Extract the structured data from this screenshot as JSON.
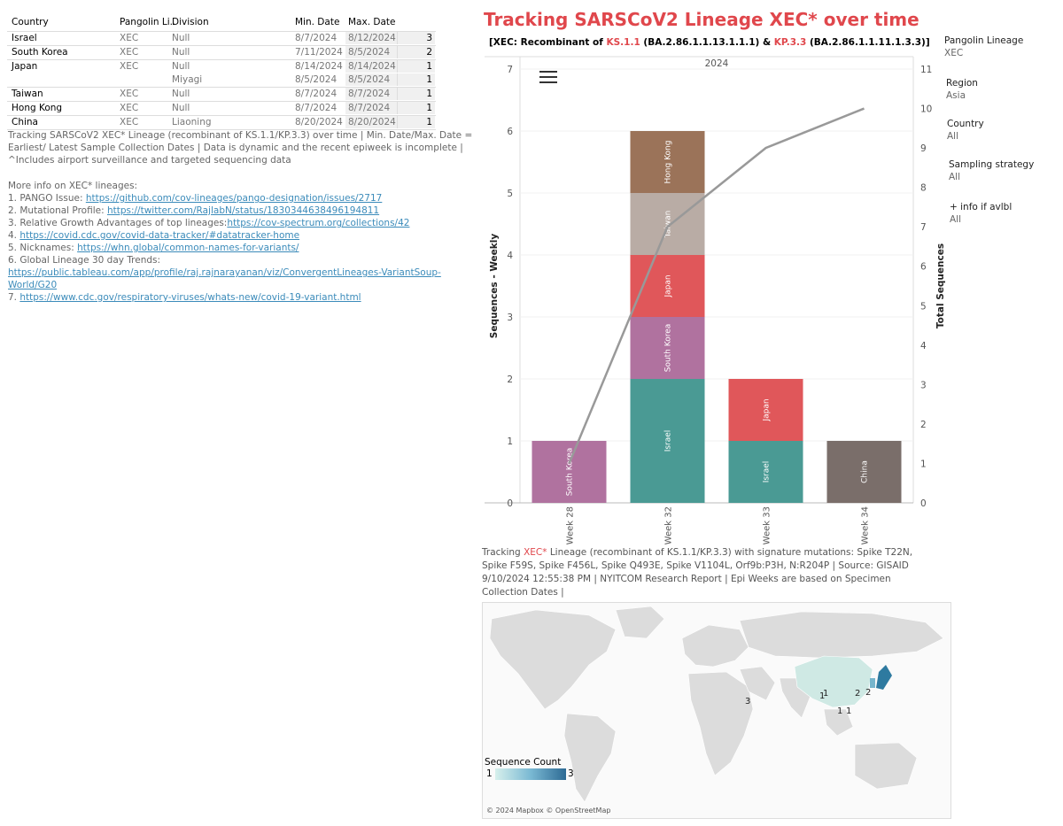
{
  "table": {
    "headers": {
      "country": "Country",
      "pango": "Pangolin Li..",
      "division": "Division",
      "min": "Min. Date",
      "max": "Max. Date"
    },
    "rows": [
      {
        "country": "Israel",
        "pango": "XEC",
        "division": "Null",
        "min": "8/7/2024",
        "max": "8/12/2024",
        "count": "3"
      },
      {
        "country": "South Korea",
        "pango": "XEC",
        "division": "Null",
        "min": "7/11/2024",
        "max": "8/5/2024",
        "count": "2"
      },
      {
        "country": "Japan",
        "pango": "XEC",
        "division": "Null",
        "min": "8/14/2024",
        "max": "8/14/2024",
        "count": "1"
      },
      {
        "country": "",
        "pango": "",
        "division": "Miyagi",
        "min": "8/5/2024",
        "max": "8/5/2024",
        "count": "1"
      },
      {
        "country": "Taiwan",
        "pango": "XEC",
        "division": "Null",
        "min": "8/7/2024",
        "max": "8/7/2024",
        "count": "1"
      },
      {
        "country": "Hong Kong",
        "pango": "XEC",
        "division": "Null",
        "min": "8/7/2024",
        "max": "8/7/2024",
        "count": "1"
      },
      {
        "country": "China",
        "pango": "XEC",
        "division": "Liaoning",
        "min": "8/20/2024",
        "max": "8/20/2024",
        "count": "1"
      }
    ]
  },
  "description": "Tracking SARSCoV2 XEC* Lineage (recombinant of KS.1.1/KP.3.3) over time | Min. Date/Max. Date = Earliest/ Latest Sample Collection Dates | Data is dynamic and the recent epiweek is incomplete | ^Includes airport surveillance and targeted sequencing data",
  "more_info": {
    "heading": "More info on XEC* lineages:",
    "items": [
      {
        "prefix": "1.  PANGO Issue: ",
        "link": "https://github.com/cov-lineages/pango-designation/issues/2717"
      },
      {
        "prefix": "2. Mutational Profile: ",
        "link": "https://twitter.com/RajlabN/status/1830344638496194811"
      },
      {
        "prefix": "3. Relative Growth Advantages of top lineages:",
        "link": "https://cov-spectrum.org/collections/42"
      },
      {
        "prefix": "4. ",
        "link": "https://covid.cdc.gov/covid-data-tracker/#datatracker-home"
      },
      {
        "prefix": "5. Nicknames: ",
        "link": "https://whn.global/common-names-for-variants/"
      },
      {
        "prefix": "6. Global Lineage 30 day Trends: ",
        "link": "https://public.tableau.com/app/profile/raj.rajnarayanan/viz/ConvergentLineages-VariantSoup-World/G20"
      },
      {
        "prefix": "7. ",
        "link": "https://www.cdc.gov/respiratory-viruses/whats-new/covid-19-variant.html"
      }
    ]
  },
  "chart": {
    "title": "Tracking SARSCoV2 Lineage XEC* over time",
    "subtitle_parts": {
      "p1": "[XEC: Recombinant of ",
      "p2": "KS.1.1",
      "p3": " (BA.2.86.1.1.13.1.1.1) & ",
      "p4": "KP.3.3",
      "p5": " (BA.2.86.1.1.11.1.3.3)]"
    },
    "header": "2024"
  },
  "chart_data": {
    "type": "bar",
    "stacked": true,
    "categories": [
      "Week 28",
      "Week 32",
      "Week 33",
      "Week 34"
    ],
    "ylabel": "Sequences - Weekly",
    "y2label": "Total  Sequences",
    "ylim": [
      0,
      7
    ],
    "y2lim": [
      0,
      11
    ],
    "yticks": [
      0,
      1,
      2,
      3,
      4,
      5,
      6,
      7
    ],
    "y2ticks": [
      0,
      1,
      2,
      3,
      4,
      5,
      6,
      7,
      8,
      9,
      10,
      11
    ],
    "series": [
      {
        "name": "Israel",
        "color": "#4a9a94",
        "values": [
          0,
          2,
          1,
          0
        ]
      },
      {
        "name": "South Korea",
        "color": "#b0729f",
        "values": [
          1,
          1,
          0,
          0
        ]
      },
      {
        "name": "Japan",
        "color": "#e0575a",
        "values": [
          0,
          1,
          1,
          0
        ]
      },
      {
        "name": "Taiwan",
        "color": "#b9aca5",
        "values": [
          0,
          1,
          0,
          0
        ]
      },
      {
        "name": "Hong Kong",
        "color": "#9b7359",
        "values": [
          0,
          1,
          0,
          0
        ]
      },
      {
        "name": "China",
        "color": "#7a6e6a",
        "values": [
          0,
          0,
          0,
          1
        ]
      }
    ],
    "total_line": {
      "name": "Total  Sequences",
      "color": "#999999",
      "values": [
        1,
        7,
        9,
        10
      ]
    }
  },
  "filters": [
    {
      "label": "Pangolin Lineage",
      "value": "XEC"
    },
    {
      "label": "Region",
      "value": "Asia"
    },
    {
      "label": "Country",
      "value": "All"
    },
    {
      "label": "Sampling strategy",
      "value": "All"
    },
    {
      "label": "+ info if avlbl",
      "value": "All"
    }
  ],
  "footer": {
    "pre": "Tracking ",
    "red": "XEC*",
    "post": " Lineage (recombinant of KS.1.1/KP.3.3) with signature mutations: Spike T22N, Spike F59S, Spike F456L, Spike Q493E, Spike V1104L, Orf9b:P3H, N:R204P   | Source: GISAID  9/10/2024 12:55:38 PM | NYITCOM Research Report | Epi Weeks are based on Specimen Collection Dates |"
  },
  "map": {
    "legend_title": "Sequence Count",
    "legend_min": "1",
    "legend_max": "3",
    "attribution": "© 2024 Mapbox © OpenStreetMap",
    "labels": [
      "1",
      "3",
      "2",
      "2",
      "1",
      "1",
      "1"
    ]
  }
}
